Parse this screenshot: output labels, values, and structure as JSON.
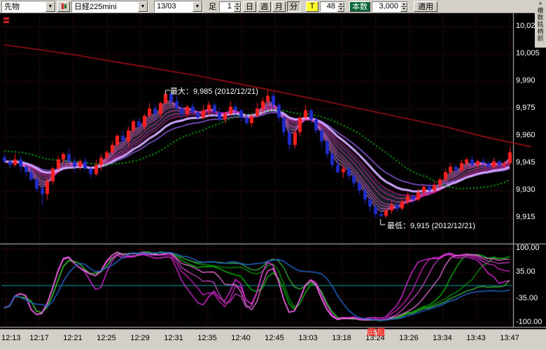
{
  "toolbar": {
    "instrument": "先物",
    "symbol": "日経225mini",
    "contract": "13/03",
    "ashi": "足",
    "interval": "1",
    "btn_day": "日",
    "btn_week": "週",
    "btn_month": "月",
    "btn_min": "分",
    "btn_tick": "T",
    "tick_count": "48",
    "count_label": "本数",
    "count_value": "3,000",
    "apply": "適用",
    "close": "×",
    "side_note": "複数銘柄前"
  },
  "main_chart": {
    "y_axis_labels": [
      "10,020",
      "10,005",
      "9,990",
      "9,975",
      "9,960",
      "9,945",
      "9,930",
      "9,915"
    ],
    "y_axis_values": [
      10020,
      10005,
      9990,
      9975,
      9960,
      9945,
      9930,
      9915
    ],
    "annotations": {
      "high": {
        "text": "最大：9,985 (2012/12/21)",
        "price": 9985
      },
      "low": {
        "text": "最低：9,915 (2012/12/21)",
        "price": 9915
      },
      "bottom_marker": "底値"
    }
  },
  "sub_chart": {
    "y_axis_labels": [
      "100.00",
      "35.00",
      "-35.00",
      "-100.00"
    ],
    "y_axis_values": [
      100,
      35,
      -35,
      -100
    ]
  },
  "x_axis": {
    "labels": [
      "12:13",
      "12:17",
      "12:21",
      "12:25",
      "12:29",
      "12:31",
      "12:35",
      "12:40",
      "12:45",
      "13:03",
      "13:18",
      "13:24",
      "13:26",
      "13:34",
      "13:43",
      "13:47"
    ]
  },
  "colors": {
    "background": "#000000",
    "panel": "#d4d0c8",
    "up": "#ff2020",
    "down": "#1f2cc8",
    "grid": "#6f1010",
    "zero_line": "#00a8a8",
    "green_ma": "#00a800",
    "long_ma": "#9c1010",
    "thick_ma": "#cfa8ff",
    "second_ma": "#8f5ae0",
    "ribbon": [
      "#ff8df5",
      "#fb79e9",
      "#f765dd",
      "#f351d1",
      "#ef3dc5",
      "#eb29b9",
      "#e715ad"
    ],
    "ribbon_fill": "rgba(160,220,255,0.15)",
    "osc_magenta": [
      "#ff30ff",
      "#e822d8",
      "#d14ad1",
      "#ff7bee"
    ],
    "osc_green": [
      "#00c800",
      "#009600",
      "#3cb43c"
    ],
    "osc_blue": "#1e64c8",
    "annotation_text": "#ffffff",
    "bottom_text": "#ff2020"
  },
  "chart_data": {
    "type": "candlestick",
    "title": "日経225mini 13/03 1分足",
    "ylim": [
      9901,
      10026
    ],
    "price_ticks": [
      10020,
      10005,
      9990,
      9975,
      9960,
      9945,
      9930,
      9915
    ],
    "time_ticks": [
      "12:13",
      "12:17",
      "12:21",
      "12:25",
      "12:29",
      "12:31",
      "12:35",
      "12:40",
      "12:45",
      "13:03",
      "13:18",
      "13:24",
      "13:26",
      "13:34",
      "13:43",
      "13:47"
    ],
    "high_of_day": 9985,
    "low_of_day": 9915,
    "ohlc": [
      [
        9948,
        9950,
        9945,
        9946
      ],
      [
        9946,
        9947,
        9942,
        9944
      ],
      [
        9944,
        9950,
        9943,
        9947
      ],
      [
        9947,
        9949,
        9940,
        9943
      ],
      [
        9943,
        9944,
        9938,
        9940
      ],
      [
        9940,
        9942,
        9935,
        9936
      ],
      [
        9936,
        9937,
        9929,
        9931
      ],
      [
        9931,
        9934,
        9922,
        9928
      ],
      [
        9928,
        9937,
        9925,
        9935
      ],
      [
        9935,
        9943,
        9933,
        9942
      ],
      [
        9942,
        9949,
        9941,
        9947
      ],
      [
        9947,
        9951,
        9945,
        9950
      ],
      [
        9950,
        9953,
        9945,
        9946
      ],
      [
        9946,
        9948,
        9940,
        9943
      ],
      [
        9943,
        9947,
        9941,
        9946
      ],
      [
        9946,
        9948,
        9941,
        9942
      ],
      [
        9942,
        9943,
        9937,
        9939
      ],
      [
        9939,
        9947,
        9938,
        9944
      ],
      [
        9944,
        9950,
        9941,
        9948
      ],
      [
        9948,
        9952,
        9946,
        9951
      ],
      [
        9951,
        9957,
        9950,
        9955
      ],
      [
        9955,
        9961,
        9953,
        9960
      ],
      [
        9960,
        9963,
        9956,
        9957
      ],
      [
        9957,
        9965,
        9954,
        9963
      ],
      [
        9963,
        9969,
        9961,
        9968
      ],
      [
        9968,
        9970,
        9964,
        9965
      ],
      [
        9965,
        9972,
        9963,
        9971
      ],
      [
        9971,
        9978,
        9970,
        9975
      ],
      [
        9975,
        9977,
        9969,
        9972
      ],
      [
        9972,
        9979,
        9970,
        9978
      ],
      [
        9978,
        9985,
        9977,
        9983
      ],
      [
        9983,
        9984,
        9977,
        9979
      ],
      [
        9979,
        9982,
        9974,
        9975
      ],
      [
        9975,
        9977,
        9969,
        9972
      ],
      [
        9972,
        9977,
        9970,
        9976
      ],
      [
        9976,
        9978,
        9972,
        9973
      ],
      [
        9973,
        9974,
        9968,
        9970
      ],
      [
        9970,
        9977,
        9969,
        9974
      ],
      [
        9974,
        9979,
        9971,
        9977
      ],
      [
        9977,
        9978,
        9971,
        9973
      ],
      [
        9973,
        9975,
        9968,
        9969
      ],
      [
        9969,
        9973,
        9967,
        9972
      ],
      [
        9972,
        9979,
        9971,
        9976
      ],
      [
        9976,
        9978,
        9971,
        9974
      ],
      [
        9974,
        9975,
        9968,
        9970
      ],
      [
        9970,
        9972,
        9966,
        9967
      ],
      [
        9967,
        9972,
        9965,
        9971
      ],
      [
        9971,
        9978,
        9970,
        9975
      ],
      [
        9975,
        9981,
        9972,
        9979
      ],
      [
        9979,
        9985,
        9977,
        9982
      ],
      [
        9982,
        9984,
        9975,
        9977
      ],
      [
        9977,
        9978,
        9968,
        9970
      ],
      [
        9970,
        9971,
        9960,
        9962
      ],
      [
        9962,
        9964,
        9952,
        9955
      ],
      [
        9955,
        9963,
        9953,
        9962
      ],
      [
        9962,
        9971,
        9960,
        9970
      ],
      [
        9970,
        9977,
        9969,
        9974
      ],
      [
        9974,
        9975,
        9967,
        9969
      ],
      [
        9969,
        9970,
        9961,
        9963
      ],
      [
        9963,
        9964,
        9954,
        9957
      ],
      [
        9957,
        9958,
        9948,
        9950
      ],
      [
        9950,
        9951,
        9942,
        9944
      ],
      [
        9944,
        9947,
        9939,
        9940
      ],
      [
        9940,
        9944,
        9937,
        9942
      ],
      [
        9942,
        9943,
        9936,
        9938
      ],
      [
        9938,
        9939,
        9932,
        9934
      ],
      [
        9934,
        9935,
        9928,
        9930
      ],
      [
        9930,
        9932,
        9923,
        9925
      ],
      [
        9925,
        9926,
        9918,
        9921
      ],
      [
        9921,
        9922,
        9915,
        9917
      ],
      [
        9917,
        9919,
        9915,
        9916
      ],
      [
        9916,
        9920,
        9915,
        9919
      ],
      [
        9919,
        9924,
        9917,
        9922
      ],
      [
        9922,
        9923,
        9918,
        9920
      ],
      [
        9920,
        9925,
        9919,
        9924
      ],
      [
        9924,
        9929,
        9922,
        9927
      ],
      [
        9927,
        9928,
        9923,
        9925
      ],
      [
        9925,
        9931,
        9924,
        9929
      ],
      [
        9929,
        9933,
        9927,
        9932
      ],
      [
        9932,
        9934,
        9928,
        9930
      ],
      [
        9930,
        9935,
        9929,
        9933
      ],
      [
        9933,
        9937,
        9931,
        9936
      ],
      [
        9936,
        9942,
        9935,
        9940
      ],
      [
        9940,
        9945,
        9938,
        9943
      ],
      [
        9943,
        9944,
        9939,
        9941
      ],
      [
        9941,
        9947,
        9940,
        9945
      ],
      [
        9945,
        9948,
        9943,
        9947
      ],
      [
        9947,
        9949,
        9943,
        9944
      ],
      [
        9944,
        9947,
        9942,
        9946
      ],
      [
        9946,
        9948,
        9943,
        9945
      ],
      [
        9945,
        9946,
        9941,
        9943
      ],
      [
        9943,
        9948,
        9942,
        9946
      ],
      [
        9946,
        9947,
        9942,
        9944
      ],
      [
        9944,
        9946,
        9942,
        9945
      ],
      [
        9945,
        9954,
        9944,
        9951
      ]
    ],
    "indicators": {
      "ribbon_ema_periods": [
        3,
        4,
        5,
        6,
        8,
        10,
        12
      ],
      "thick_ema_period": 15,
      "second_ema_period": 20,
      "green_sma_period": 25,
      "green_sma_seed": 9952,
      "long_ma_points": [
        [
          0,
          10010
        ],
        [
          12,
          10005
        ],
        [
          24,
          9999
        ],
        [
          36,
          9993
        ],
        [
          48,
          9986
        ],
        [
          58,
          9980
        ],
        [
          66,
          9975
        ],
        [
          74,
          9970
        ],
        [
          82,
          9965
        ],
        [
          90,
          9959
        ],
        [
          98,
          9954
        ]
      ]
    },
    "oscillators": {
      "range": [
        -100,
        100
      ],
      "ticks": [
        100,
        35,
        -35,
        -100
      ],
      "magenta_periods": [
        8,
        11,
        14,
        18
      ],
      "green_periods": [
        22,
        28,
        36
      ],
      "blue_period": 50,
      "smooth": {
        "magenta": 3,
        "green": 4,
        "blue": 6
      }
    }
  }
}
